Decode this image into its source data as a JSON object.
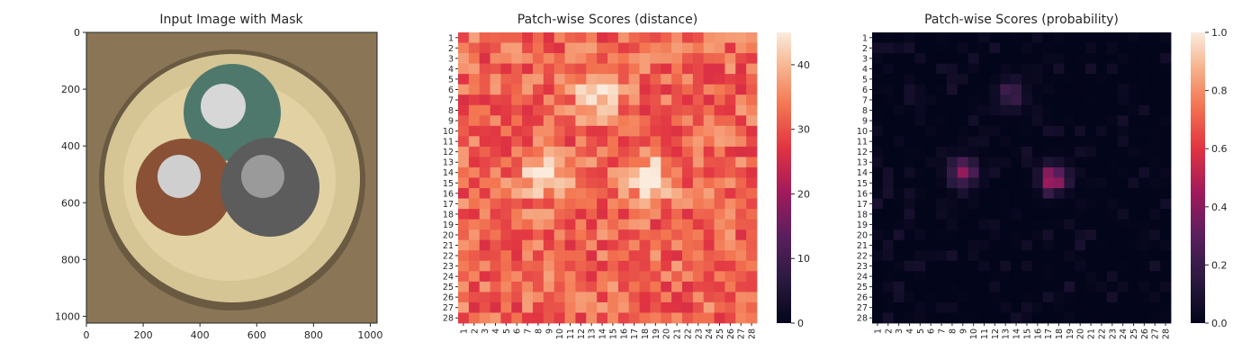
{
  "chart_data": [
    {
      "type": "image",
      "title": "Input Image with Mask",
      "x_ticks": [
        "0",
        "200",
        "400",
        "600",
        "800",
        "1000"
      ],
      "y_ticks": [
        "0",
        "200",
        "400",
        "600",
        "800",
        "1000"
      ],
      "xlim": [
        0,
        1024
      ],
      "ylim": [
        1024,
        0
      ],
      "colors": {
        "background": "#8a7657",
        "cable_sheath": "#d6c594",
        "wire_green": "#4f786c",
        "wire_brown": "#8a5136",
        "wire_gray": "#5c5c5c",
        "copper_strands": "#d7d7d7"
      }
    },
    {
      "type": "heatmap",
      "title": "Patch-wise Scores (distance)",
      "rows": [
        "1",
        "2",
        "3",
        "4",
        "5",
        "6",
        "7",
        "8",
        "9",
        "10",
        "11",
        "12",
        "13",
        "14",
        "15",
        "16",
        "17",
        "18",
        "19",
        "20",
        "21",
        "22",
        "23",
        "24",
        "25",
        "26",
        "27",
        "28"
      ],
      "cols": [
        "1",
        "2",
        "3",
        "4",
        "5",
        "6",
        "7",
        "8",
        "9",
        "10",
        "11",
        "12",
        "13",
        "14",
        "15",
        "16",
        "17",
        "18",
        "19",
        "20",
        "21",
        "22",
        "23",
        "24",
        "25",
        "26",
        "27",
        "28"
      ],
      "colorbar_ticks": [
        "0",
        "10",
        "20",
        "30",
        "40"
      ],
      "vmin": 0,
      "vmax": 45,
      "base_value": 32,
      "hotspots": [
        {
          "row": 6.5,
          "col": 13.5,
          "peak": 45
        },
        {
          "row": 14.5,
          "col": 8.5,
          "peak": 44
        },
        {
          "row": 14.5,
          "col": 18.3,
          "peak": 44
        }
      ],
      "colormap": "rocket"
    },
    {
      "type": "heatmap",
      "title": "Patch-wise Scores (probability)",
      "rows": [
        "1",
        "2",
        "3",
        "4",
        "5",
        "6",
        "7",
        "8",
        "9",
        "10",
        "11",
        "12",
        "13",
        "14",
        "15",
        "16",
        "17",
        "18",
        "19",
        "20",
        "21",
        "22",
        "23",
        "24",
        "25",
        "26",
        "27",
        "28"
      ],
      "cols": [
        "1",
        "2",
        "3",
        "4",
        "5",
        "6",
        "7",
        "8",
        "9",
        "10",
        "11",
        "12",
        "13",
        "14",
        "15",
        "16",
        "17",
        "18",
        "19",
        "20",
        "21",
        "22",
        "23",
        "24",
        "25",
        "26",
        "27",
        "28"
      ],
      "colorbar_ticks": [
        "0.0",
        "0.2",
        "0.4",
        "0.6",
        "0.8",
        "1.0"
      ],
      "vmin": 0,
      "vmax": 1,
      "base_value": 0.0,
      "hotspots": [
        {
          "row": 6.5,
          "col": 13.5,
          "peak": 0.3
        },
        {
          "row": 14.0,
          "col": 9.0,
          "peak": 0.5
        },
        {
          "row": 14.5,
          "col": 17.5,
          "peak": 0.55
        }
      ],
      "colormap": "rocket"
    }
  ]
}
